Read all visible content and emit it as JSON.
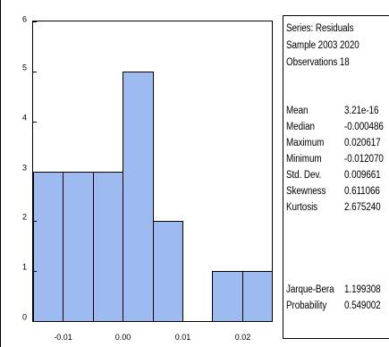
{
  "colors": {
    "bar_fill": "#9dbbf0",
    "bar_stroke": "#000000",
    "panel_border": "#000000"
  },
  "chart_data": {
    "type": "bar",
    "title": "",
    "xlabel": "",
    "ylabel": "",
    "bin_edges": [
      -0.015,
      -0.01,
      -0.005,
      0.0,
      0.005,
      0.01,
      0.015,
      0.02,
      0.025
    ],
    "values": [
      3,
      3,
      3,
      5,
      2,
      0,
      1,
      1
    ],
    "xlim": [
      -0.015,
      0.025
    ],
    "ylim": [
      0,
      6
    ],
    "x_ticks": [
      -0.01,
      0.0,
      0.01,
      0.02
    ],
    "x_tick_labels": [
      "-0.01",
      "0.00",
      "0.01",
      "0.02"
    ],
    "y_ticks": [
      0,
      1,
      2,
      3,
      4,
      5,
      6
    ],
    "y_tick_labels": [
      "0",
      "1",
      "2",
      "3",
      "4",
      "5",
      "6"
    ],
    "grid": false,
    "legend": "none"
  },
  "stats": {
    "header": [
      "Series: Residuals",
      "Sample 2003 2020",
      "Observations 18"
    ],
    "rows": [
      {
        "label": "Mean",
        "value": "3.21e-16"
      },
      {
        "label": "Median",
        "value": "-0.000486"
      },
      {
        "label": "Maximum",
        "value": "0.020617"
      },
      {
        "label": "Minimum",
        "value": "-0.012070"
      },
      {
        "label": "Std. Dev.",
        "value": "0.009661"
      },
      {
        "label": "Skewness",
        "value": "0.611066"
      },
      {
        "label": "Kurtosis",
        "value": "2.675240"
      }
    ],
    "test_rows": [
      {
        "label": "Jarque-Bera",
        "value": "1.199308"
      },
      {
        "label": "Probability",
        "value": "0.549002"
      }
    ]
  }
}
